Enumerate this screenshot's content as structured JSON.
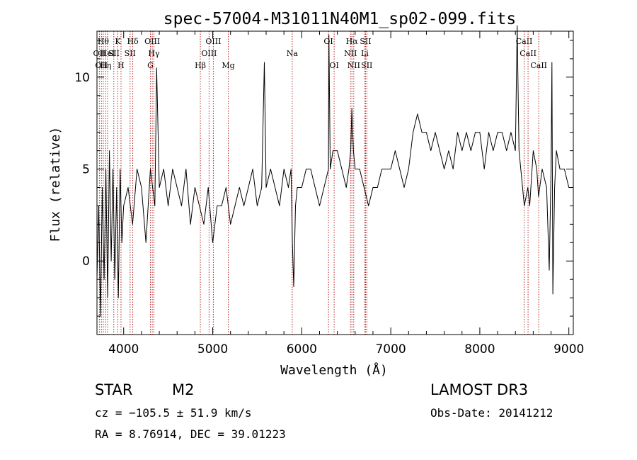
{
  "chart_data": {
    "type": "line",
    "title": "spec-57004-M31011N40M1_sp02-099.fits",
    "xlabel": "Wavelength (Å)",
    "ylabel": "Flux (relative)",
    "xlim": [
      3700,
      9050
    ],
    "ylim": [
      -4,
      12.5
    ],
    "xticks": [
      4000,
      5000,
      6000,
      7000,
      8000,
      9000
    ],
    "yticks": [
      0,
      5,
      10
    ],
    "series": [
      {
        "name": "spectrum",
        "x": [
          3700,
          3720,
          3740,
          3760,
          3780,
          3800,
          3820,
          3840,
          3860,
          3880,
          3900,
          3920,
          3940,
          3960,
          3980,
          4000,
          4050,
          4100,
          4150,
          4200,
          4250,
          4300,
          4350,
          4370,
          4400,
          4450,
          4500,
          4550,
          4600,
          4650,
          4700,
          4750,
          4800,
          4850,
          4900,
          4950,
          5000,
          5050,
          5100,
          5150,
          5200,
          5250,
          5300,
          5350,
          5400,
          5450,
          5500,
          5550,
          5580,
          5600,
          5650,
          5700,
          5750,
          5800,
          5850,
          5880,
          5895,
          5910,
          5930,
          5950,
          6000,
          6050,
          6100,
          6150,
          6200,
          6250,
          6300,
          6305,
          6320,
          6350,
          6400,
          6450,
          6500,
          6530,
          6550,
          6563,
          6580,
          6600,
          6650,
          6700,
          6750,
          6800,
          6850,
          6900,
          6950,
          7000,
          7050,
          7100,
          7150,
          7200,
          7250,
          7300,
          7350,
          7400,
          7450,
          7500,
          7550,
          7600,
          7650,
          7700,
          7750,
          7800,
          7850,
          7900,
          7950,
          8000,
          8050,
          8100,
          8150,
          8200,
          8250,
          8300,
          8350,
          8400,
          8420,
          8440,
          8460,
          8500,
          8540,
          8560,
          8600,
          8640,
          8660,
          8700,
          8750,
          8780,
          8800,
          8810,
          8820,
          8840,
          8860,
          8900,
          8950,
          9000,
          9050
        ],
        "y": [
          -1,
          3,
          -3,
          4,
          -1,
          5,
          -2,
          6,
          0,
          5,
          -1,
          4,
          -2,
          5,
          1,
          3,
          4,
          2,
          5,
          4,
          1,
          5,
          3,
          10.5,
          4,
          5,
          3,
          5,
          4,
          3,
          5,
          2,
          4,
          3,
          2,
          4,
          1,
          3,
          3,
          4,
          2,
          3,
          4,
          3,
          4,
          5,
          3,
          4,
          10.8,
          4,
          5,
          4,
          3,
          5,
          4,
          5,
          1,
          -1.4,
          3,
          4,
          4,
          5,
          5,
          4,
          3,
          4,
          5,
          12.3,
          5,
          6,
          6,
          5,
          4,
          5,
          6,
          8.3,
          6,
          5,
          5,
          4,
          3,
          4,
          4,
          5,
          5,
          5,
          6,
          5,
          4,
          5,
          7,
          8,
          7,
          7,
          6,
          7,
          6,
          5,
          6,
          5,
          7,
          6,
          7,
          6,
          7,
          7,
          5,
          7,
          6,
          7,
          7,
          6,
          7,
          6,
          12.8,
          6,
          5,
          3,
          4,
          3,
          6,
          5,
          3.5,
          5,
          4,
          -0.5,
          5,
          10.8,
          -1.8,
          4,
          6,
          5,
          5,
          4,
          4
        ]
      }
    ],
    "lines": [
      {
        "wave": 3727,
        "label": "OII",
        "row": 2
      },
      {
        "wave": 3750,
        "label": "OII",
        "row": 3
      },
      {
        "wave": 3771,
        "label": "Hθ",
        "row": 1
      },
      {
        "wave": 3798,
        "label": "Hη",
        "row": 3
      },
      {
        "wave": 3820,
        "label": "HeI",
        "row": 2
      },
      {
        "wave": 3889,
        "label": "SII",
        "row": 2
      },
      {
        "wave": 3934,
        "label": "K",
        "row": 1
      },
      {
        "wave": 3970,
        "label": "H",
        "row": 3
      },
      {
        "wave": 4072,
        "label": "SII",
        "row": 2
      },
      {
        "wave": 4102,
        "label": "Hδ",
        "row": 1
      },
      {
        "wave": 4300,
        "label": "G",
        "row": 3
      },
      {
        "wave": 4321,
        "label": "OIII",
        "row": 1
      },
      {
        "wave": 4340,
        "label": "Hγ",
        "row": 2
      },
      {
        "wave": 4861,
        "label": "Hβ",
        "row": 3
      },
      {
        "wave": 4959,
        "label": "OIII",
        "row": 2
      },
      {
        "wave": 5007,
        "label": "OIII",
        "row": 1
      },
      {
        "wave": 5175,
        "label": "Mg",
        "row": 3
      },
      {
        "wave": 5893,
        "label": "Na",
        "row": 2
      },
      {
        "wave": 6300,
        "label": "OI",
        "row": 1
      },
      {
        "wave": 6364,
        "label": "OI",
        "row": 3
      },
      {
        "wave": 6548,
        "label": "NII",
        "row": 2
      },
      {
        "wave": 6563,
        "label": "Hα",
        "row": 1
      },
      {
        "wave": 6584,
        "label": "NII",
        "row": 3
      },
      {
        "wave": 6708,
        "label": "Li",
        "row": 2
      },
      {
        "wave": 6717,
        "label": "SII",
        "row": 1
      },
      {
        "wave": 6731,
        "label": "SII",
        "row": 3
      },
      {
        "wave": 8498,
        "label": "CaII",
        "row": 1
      },
      {
        "wave": 8542,
        "label": "CaII",
        "row": 2
      },
      {
        "wave": 8662,
        "label": "CaII",
        "row": 3
      }
    ]
  },
  "info": {
    "class_label": "STAR",
    "subclass": "M2",
    "survey": "LAMOST DR3",
    "cz": "cz = −105.5 ± 51.9 km/s",
    "obs_date": "Obs-Date: 20141212",
    "radec": "RA =   8.76914, DEC =  39.01223"
  },
  "colors": {
    "spectrum": "#000000",
    "emission_line": "#b22222",
    "axis": "#000000"
  }
}
